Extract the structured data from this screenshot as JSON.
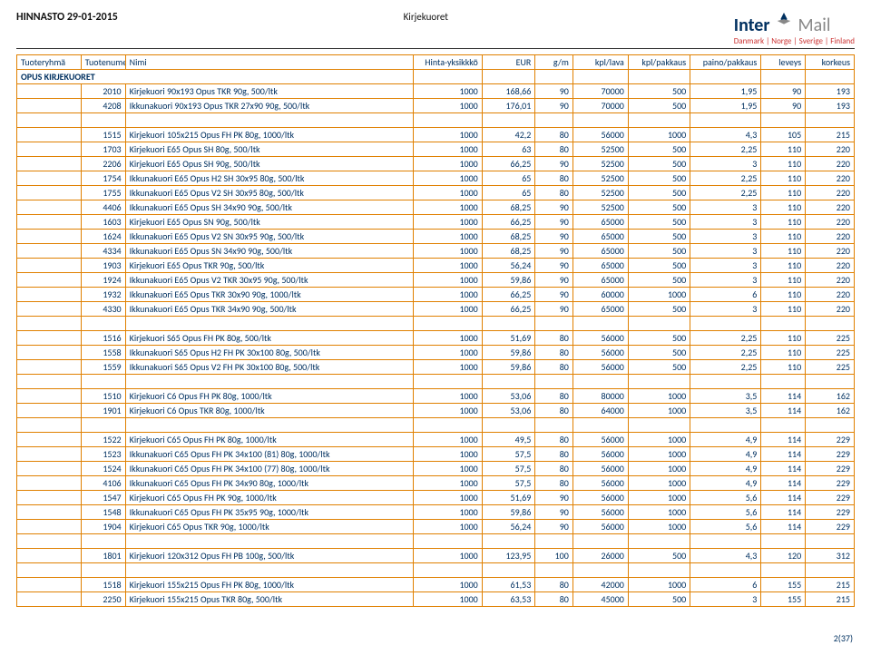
{
  "header": {
    "left": "HINNASTO 29-01-2015",
    "center": "Kirjekuoret",
    "logo_main": "Inter",
    "logo_light": "Mail",
    "logo_sub": "Danmark | Norge | Sverige | Finland"
  },
  "columns": [
    "Tuoteryhmä",
    "Tuotenumero",
    "Nimi",
    "Hinta-yksikkkö",
    "EUR",
    "g/m",
    "kpl/lava",
    "kpl/pakkaus",
    "paino/pakkaus",
    "leveys",
    "korkeus"
  ],
  "section_label": "OPUS KIRJEKUORET",
  "groups": [
    {
      "rows": [
        [
          "",
          "2010",
          "Kirjekuori 90x193 Opus TKR 90g, 500/ltk",
          "1000",
          "168,66",
          "90",
          "70000",
          "500",
          "1,95",
          "90",
          "193"
        ],
        [
          "",
          "4208",
          "Ikkunakuori 90x193 Opus TKR 27x90 90g, 500/ltk",
          "1000",
          "176,01",
          "90",
          "70000",
          "500",
          "1,95",
          "90",
          "193"
        ]
      ]
    },
    {
      "rows": [
        [
          "",
          "1515",
          "Kirjekuori 105x215 Opus FH PK 80g, 1000/ltk",
          "1000",
          "42,2",
          "80",
          "56000",
          "1000",
          "4,3",
          "105",
          "215"
        ],
        [
          "",
          "1703",
          "Kirjekuori E65 Opus SH 80g, 500/ltk",
          "1000",
          "63",
          "80",
          "52500",
          "500",
          "2,25",
          "110",
          "220"
        ],
        [
          "",
          "2206",
          "Kirjekuori E65 Opus SH 90g, 500/ltk",
          "1000",
          "66,25",
          "90",
          "52500",
          "500",
          "3",
          "110",
          "220"
        ],
        [
          "",
          "1754",
          "Ikkunakuori E65 Opus H2 SH 30x95 80g, 500/ltk",
          "1000",
          "65",
          "80",
          "52500",
          "500",
          "2,25",
          "110",
          "220"
        ],
        [
          "",
          "1755",
          "Ikkunakuori E65 Opus V2 SH 30x95 80g, 500/ltk",
          "1000",
          "65",
          "80",
          "52500",
          "500",
          "2,25",
          "110",
          "220"
        ],
        [
          "",
          "4406",
          "Ikkunakuori E65 Opus SH 34x90 90g, 500/ltk",
          "1000",
          "68,25",
          "90",
          "52500",
          "500",
          "3",
          "110",
          "220"
        ],
        [
          "",
          "1603",
          "Kirjekuori E65 Opus SN 90g, 500/ltk",
          "1000",
          "66,25",
          "90",
          "65000",
          "500",
          "3",
          "110",
          "220"
        ],
        [
          "",
          "1624",
          "Ikkunakuori E65 Opus V2 SN 30x95 90g, 500/ltk",
          "1000",
          "68,25",
          "90",
          "65000",
          "500",
          "3",
          "110",
          "220"
        ],
        [
          "",
          "4334",
          "Ikkunakuori E65 Opus SN 34x90 90g, 500/ltk",
          "1000",
          "68,25",
          "90",
          "65000",
          "500",
          "3",
          "110",
          "220"
        ],
        [
          "",
          "1903",
          "Kirjekuori E65 Opus TKR 90g, 500/ltk",
          "1000",
          "56,24",
          "90",
          "65000",
          "500",
          "3",
          "110",
          "220"
        ],
        [
          "",
          "1924",
          "Ikkunakuori E65 Opus V2 TKR 30x95 90g, 500/ltk",
          "1000",
          "59,86",
          "90",
          "65000",
          "500",
          "3",
          "110",
          "220"
        ],
        [
          "",
          "1932",
          "Ikkunakuori E65 Opus TKR 30x90 90g, 1000/ltk",
          "1000",
          "66,25",
          "90",
          "60000",
          "1000",
          "6",
          "110",
          "220"
        ],
        [
          "",
          "4330",
          "Ikkunakuori E65 Opus TKR 34x90 90g, 500/ltk",
          "1000",
          "66,25",
          "90",
          "65000",
          "500",
          "3",
          "110",
          "220"
        ]
      ]
    },
    {
      "rows": [
        [
          "",
          "1516",
          "Kirjekuori S65 Opus FH PK 80g, 500/ltk",
          "1000",
          "51,69",
          "80",
          "56000",
          "500",
          "2,25",
          "110",
          "225"
        ],
        [
          "",
          "1558",
          "Ikkunakuori S65 Opus H2 FH PK 30x100 80g, 500/ltk",
          "1000",
          "59,86",
          "80",
          "56000",
          "500",
          "2,25",
          "110",
          "225"
        ],
        [
          "",
          "1559",
          "Ikkunakuori S65 Opus V2 FH PK 30x100 80g, 500/ltk",
          "1000",
          "59,86",
          "80",
          "56000",
          "500",
          "2,25",
          "110",
          "225"
        ]
      ]
    },
    {
      "rows": [
        [
          "",
          "1510",
          "Kirjekuori C6 Opus FH PK 80g, 1000/ltk",
          "1000",
          "53,06",
          "80",
          "80000",
          "1000",
          "3,5",
          "114",
          "162"
        ],
        [
          "",
          "1901",
          "Kirjekuori C6 Opus TKR 80g, 1000/ltk",
          "1000",
          "53,06",
          "80",
          "64000",
          "1000",
          "3,5",
          "114",
          "162"
        ]
      ]
    },
    {
      "rows": [
        [
          "",
          "1522",
          "Kirjekuori C65 Opus FH PK 80g, 1000/ltk",
          "1000",
          "49,5",
          "80",
          "56000",
          "1000",
          "4,9",
          "114",
          "229"
        ],
        [
          "",
          "1523",
          "Ikkunakuori C65 Opus FH PK 34x100 (81) 80g, 1000/ltk",
          "1000",
          "57,5",
          "80",
          "56000",
          "1000",
          "4,9",
          "114",
          "229"
        ],
        [
          "",
          "1524",
          "Ikkunakuori C65 Opus FH PK 34x100 (77) 80g, 1000/ltk",
          "1000",
          "57,5",
          "80",
          "56000",
          "1000",
          "4,9",
          "114",
          "229"
        ],
        [
          "",
          "4106",
          "Ikkunakuori C65 Opus FH PK 34x90 80g, 1000/ltk",
          "1000",
          "57,5",
          "80",
          "56000",
          "1000",
          "4,9",
          "114",
          "229"
        ],
        [
          "",
          "1547",
          "Kirjekuori C65 Opus FH PK 90g, 1000/ltk",
          "1000",
          "51,69",
          "90",
          "56000",
          "1000",
          "5,6",
          "114",
          "229"
        ],
        [
          "",
          "1548",
          "Ikkunakuori C65 Opus FH PK 35x95 90g, 1000/ltk",
          "1000",
          "59,86",
          "90",
          "56000",
          "1000",
          "5,6",
          "114",
          "229"
        ],
        [
          "",
          "1904",
          "Kirjekuori C65 Opus TKR 90g, 1000/ltk",
          "1000",
          "56,24",
          "90",
          "56000",
          "1000",
          "5,6",
          "114",
          "229"
        ]
      ]
    },
    {
      "rows": [
        [
          "",
          "1801",
          "Kirjekuori 120x312 Opus FH PB 100g, 500/ltk",
          "1000",
          "123,95",
          "100",
          "26000",
          "500",
          "4,3",
          "120",
          "312"
        ]
      ]
    },
    {
      "rows": [
        [
          "",
          "1518",
          "Kirjekuori 155x215 Opus FH PK 80g, 1000/ltk",
          "1000",
          "61,53",
          "80",
          "42000",
          "1000",
          "6",
          "155",
          "215"
        ],
        [
          "",
          "2250",
          "Kirjekuori 155x215 Opus TKR 80g, 500/ltk",
          "1000",
          "63,53",
          "80",
          "45000",
          "500",
          "3",
          "155",
          "215"
        ]
      ]
    }
  ],
  "footer": "2(37)",
  "style": {
    "border_color": "#e08000",
    "text_color": "#003060",
    "num_align": "right"
  }
}
